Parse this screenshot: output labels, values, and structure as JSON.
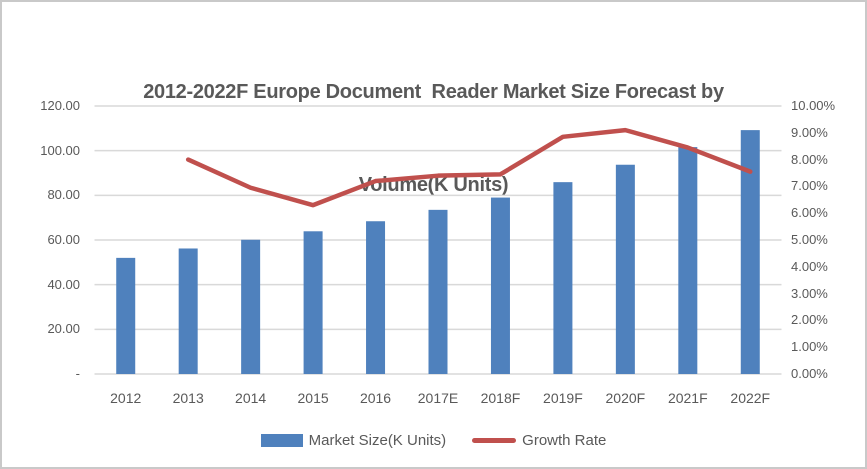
{
  "chart": {
    "title_lines": [
      "2012-2022F Europe Document  Reader Market Size Forecast by",
      "Volume(K Units)"
    ],
    "legend": [
      {
        "label": "Market Size(K Units)",
        "marker": "bar-swatch"
      },
      {
        "label": "Growth Rate",
        "marker": "line-swatch"
      }
    ]
  },
  "colors": {
    "bar": "#4f81bd",
    "line": "#c0504d",
    "text": "#595959",
    "gridline": "#d9d9d9",
    "border": "#c9c9c9",
    "background": "#ffffff"
  },
  "chart_data": {
    "type": "bar",
    "combo": "bar+line",
    "title": "2012-2022F Europe Document Reader Market Size Forecast by Volume(K Units)",
    "categories": [
      "2012",
      "2013",
      "2014",
      "2015",
      "2016",
      "2017E",
      "2018F",
      "2019F",
      "2020F",
      "2021F",
      "2022F"
    ],
    "series": [
      {
        "name": "Market Size(K Units)",
        "type": "bar",
        "axis": "left",
        "values": [
          52.0,
          56.2,
          60.1,
          63.9,
          68.4,
          73.5,
          79.0,
          85.9,
          93.7,
          101.6,
          109.2
        ]
      },
      {
        "name": "Growth Rate",
        "type": "line",
        "axis": "right",
        "values": [
          null,
          8.0,
          6.95,
          6.3,
          7.2,
          7.4,
          7.45,
          8.85,
          9.1,
          8.45,
          7.55
        ]
      }
    ],
    "left_axis": {
      "min": 0,
      "max": 120,
      "step": 20,
      "tick_labels_top_to_bottom": [
        "120.00",
        "100.00",
        "80.00",
        "60.00",
        "40.00",
        "20.00",
        "-"
      ]
    },
    "right_axis": {
      "min": 0,
      "max": 10,
      "step": 1,
      "tick_labels_top_to_bottom": [
        "10.00%",
        "9.00%",
        "8.00%",
        "7.00%",
        "6.00%",
        "5.00%",
        "4.00%",
        "3.00%",
        "2.00%",
        "1.00%",
        "0.00%"
      ],
      "unit": "%"
    },
    "grid": true,
    "legend_position": "bottom"
  }
}
